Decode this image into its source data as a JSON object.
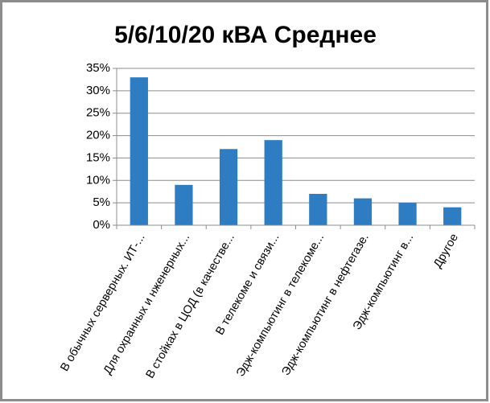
{
  "chart_data": {
    "type": "bar",
    "title": "5/6/10/20 кВА Среднее",
    "categories": [
      "В обычных серверных. ИТ-...",
      "Для охранных и нженерных...",
      "В стойках в ЦОД (в качестве...",
      "В телекоме и связи...",
      "Эдж-компьютинг в телекоме...",
      "Эдж-компьютинг в нефтегазе.",
      "Эдж-компьютинг в...",
      "Другое"
    ],
    "values": [
      33,
      9,
      17,
      19,
      7,
      6,
      5,
      4
    ],
    "color": "#2e7dc3",
    "ylim": [
      0,
      35
    ],
    "yticks": [
      {
        "value": 0,
        "label": "0%"
      },
      {
        "value": 5,
        "label": "5%"
      },
      {
        "value": 10,
        "label": "10%"
      },
      {
        "value": 15,
        "label": "15%"
      },
      {
        "value": 20,
        "label": "20%"
      },
      {
        "value": 25,
        "label": "25%"
      },
      {
        "value": 30,
        "label": "30%"
      },
      {
        "value": 35,
        "label": "35%"
      }
    ],
    "grid": true
  }
}
